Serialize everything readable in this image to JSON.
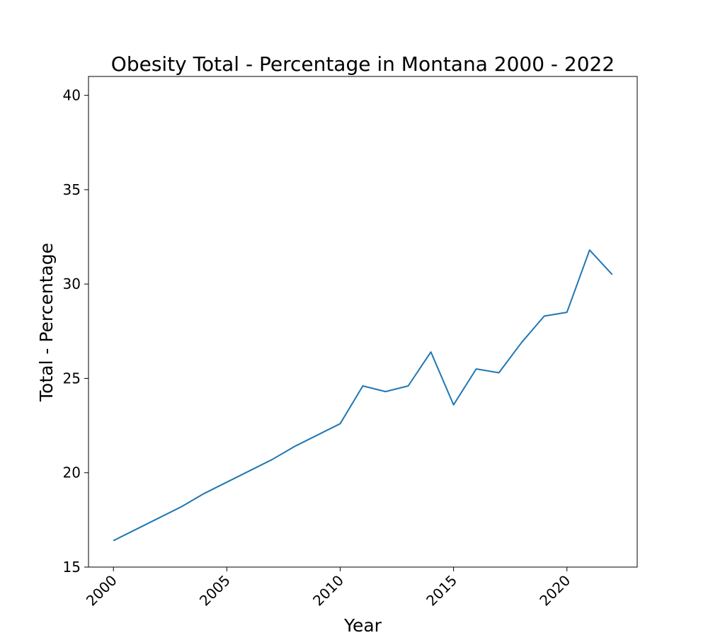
{
  "chart_data": {
    "type": "line",
    "title": "Obesity Total - Percentage in Montana 2000 - 2022",
    "xlabel": "Year",
    "ylabel": "Total - Percentage",
    "xlim": [
      1998.9,
      2023.1
    ],
    "ylim": [
      15,
      41
    ],
    "x_ticks": [
      2000,
      2005,
      2010,
      2015,
      2020
    ],
    "y_ticks": [
      15,
      20,
      25,
      30,
      35,
      40
    ],
    "x_tick_labels": [
      "2000",
      "2005",
      "2010",
      "2015",
      "2020"
    ],
    "y_tick_labels": [
      "15",
      "20",
      "25",
      "30",
      "35",
      "40"
    ],
    "grid": false,
    "line_color": "#1f77b4",
    "series": [
      {
        "x": [
          2000,
          2001,
          2002,
          2003,
          2004,
          2005,
          2006,
          2007,
          2008,
          2009,
          2010,
          2011,
          2012,
          2013,
          2014,
          2015,
          2016,
          2017,
          2018,
          2019,
          2020,
          2021,
          2022
        ],
        "values": [
          16.4,
          17.0,
          17.6,
          18.2,
          18.9,
          19.5,
          20.1,
          20.7,
          21.4,
          22.0,
          22.6,
          24.6,
          24.3,
          24.6,
          26.4,
          23.6,
          25.5,
          25.3,
          26.9,
          28.3,
          28.5,
          31.8,
          30.5
        ]
      }
    ]
  }
}
